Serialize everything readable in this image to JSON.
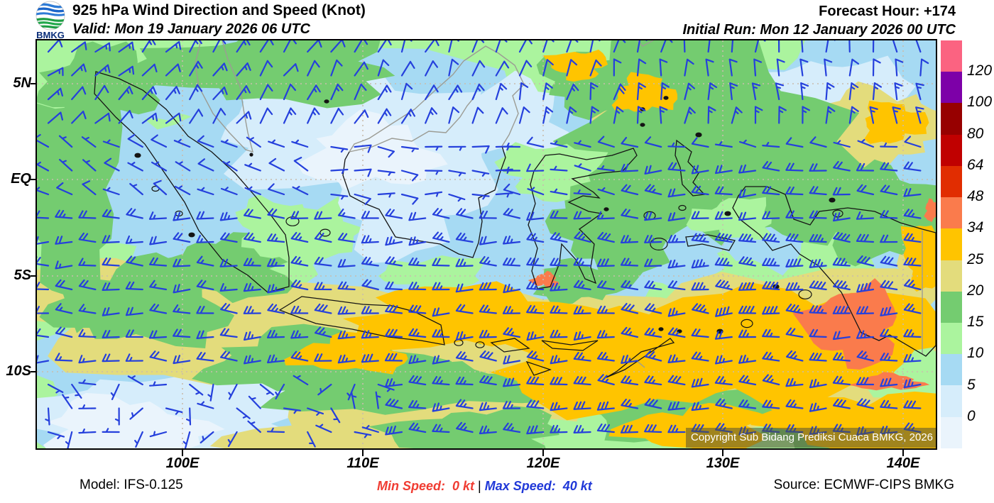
{
  "header": {
    "logo_text": "BMKG",
    "title": "925 hPa Wind Direction and Speed (Knot)",
    "valid": "Valid: Mon 19 January 2026 06 UTC",
    "forecast_hour": "Forecast Hour: +174",
    "initial_run": "Initial Run: Mon 12 January 2026 00 UTC"
  },
  "map": {
    "y_axis_labels": [
      "5N",
      "EQ",
      "5S",
      "10S"
    ],
    "x_axis_labels": [
      "100E",
      "110E",
      "120E",
      "130E",
      "140E"
    ],
    "copyright": "Copyright Sub Bidang Prediksi Cuaca BMKG, 2026"
  },
  "legend": {
    "tick_labels": [
      "120",
      "100",
      "80",
      "64",
      "48",
      "34",
      "25",
      "20",
      "15",
      "10",
      "5",
      "0"
    ],
    "band_colors_top_to_bottom": [
      "#FB6381",
      "#7D00A8",
      "#970000",
      "#C00000",
      "#E12D01",
      "#FA7B4C",
      "#FFC400",
      "#E3DC7C",
      "#74CC70",
      "#ABF49E",
      "#A6DAF3",
      "#D6EDFB",
      "#EAF4FC"
    ]
  },
  "footer": {
    "model": "Model: IFS-0.125",
    "min_speed": "Min Speed:  0 kt ",
    "separator": "| ",
    "max_speed": "Max Speed:  40 kt",
    "source": "Source: ECMWF-CIPS BMKG"
  },
  "colors": {
    "wind_barb": "#2540DC",
    "coastline": "#141414",
    "foreign_border": "#9C9C94",
    "gridline": "#C9BCAD",
    "min_speed_text": "#F03C32",
    "max_speed_text": "#2038D8"
  }
}
